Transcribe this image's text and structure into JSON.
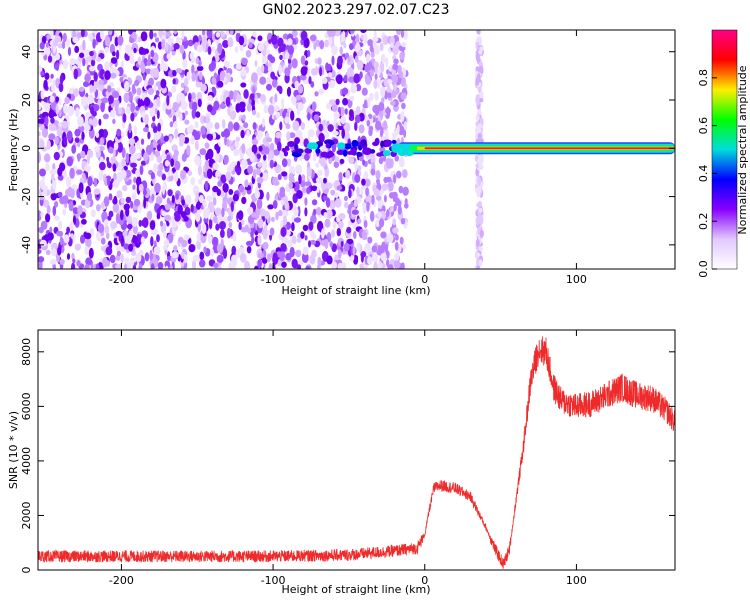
{
  "title": "GN02.2023.297.02.07.C23",
  "colors": {
    "axis": "#000000",
    "snr_line": "#ee2a2a",
    "spectrogram_faint": "#d9b8ff",
    "spectrogram_strong": "#6a00ee"
  },
  "chart_data": [
    {
      "type": "heatmap",
      "xlabel": "Height of straight line (km)",
      "ylabel": "Frequency (Hz)",
      "xlim": [
        -255,
        165
      ],
      "ylim": [
        -50,
        49
      ],
      "x_ticks": [
        -200,
        -100,
        0,
        100
      ],
      "y_ticks": [
        -40,
        -20,
        0,
        20,
        40
      ],
      "colorbar": {
        "label": "Normalized spectral amplitude",
        "range": [
          0,
          1
        ],
        "ticks": [
          "0.0",
          "0.2",
          "0.4",
          "0.6",
          "0.8"
        ],
        "colormap": [
          "#ffffff",
          "#e2c8ff",
          "#8800ff",
          "#0000ff",
          "#00dddd",
          "#00ff00",
          "#ffee00",
          "#ff0000",
          "#ff0088"
        ]
      },
      "features": {
        "noise_region_x": [
          -255,
          -20
        ],
        "tone_frequency_hz": 0,
        "tone_start_x": -30,
        "tone_amplitude_near_x": 0.9,
        "vertical_stripe_x": 36
      }
    },
    {
      "type": "line",
      "xlabel": "Height of straight line (km)",
      "ylabel": "SNR (10 * v/v)",
      "xlim": [
        -255,
        165
      ],
      "ylim": [
        0,
        8800
      ],
      "x_ticks": [
        -200,
        -100,
        0,
        100
      ],
      "y_ticks": [
        0,
        2000,
        4000,
        6000,
        8000
      ],
      "series": [
        {
          "x": [
            -255,
            -200,
            -150,
            -100,
            -50,
            -20,
            -5,
            0,
            3,
            6,
            10,
            20,
            30,
            40,
            47,
            52,
            56,
            60,
            65,
            70,
            75,
            80,
            85,
            90,
            100,
            110,
            120,
            130,
            140,
            150,
            160,
            165
          ],
          "y": [
            500,
            500,
            500,
            500,
            550,
            700,
            800,
            1300,
            2200,
            3000,
            3100,
            3000,
            2700,
            1600,
            700,
            200,
            800,
            2500,
            4500,
            7000,
            8100,
            8000,
            6700,
            6200,
            6000,
            6100,
            6400,
            6700,
            6400,
            6300,
            5800,
            5400
          ]
        }
      ]
    }
  ]
}
